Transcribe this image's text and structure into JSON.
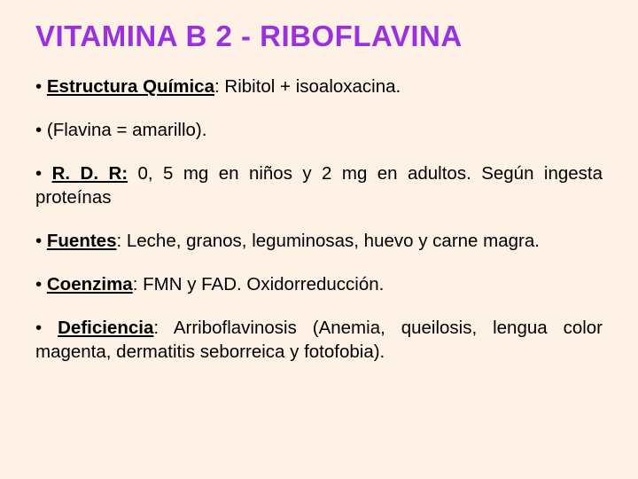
{
  "slide": {
    "background_color": "#fef1e6",
    "title_color": "#9b30dd",
    "text_color": "#000000",
    "title_fontsize": 33,
    "body_fontsize": 20.5,
    "title": "VITAMINA B 2 - RIBOFLAVINA",
    "bullets": [
      {
        "label": "Estructura Química",
        "label_bold": true,
        "text": ": Ribitol + isoaloxacina."
      },
      {
        "label": "",
        "label_bold": false,
        "text": "(Flavina = amarillo)."
      },
      {
        "label": "R. D. R:",
        "label_bold": true,
        "text": " 0, 5 mg en niños y 2 mg en adultos. Según ingesta proteínas"
      },
      {
        "label": "Fuentes",
        "label_bold": true,
        "text": ": Leche, granos, leguminosas, huevo y carne magra."
      },
      {
        "label": "Coenzima",
        "label_bold": true,
        "text": ": FMN y FAD. Oxidorreducción."
      },
      {
        "label": "Deficiencia",
        "label_bold": true,
        "text": ": Arriboflavinosis (Anemia, queilosis, lengua color magenta, dermatitis seborreica y fotofobia)."
      }
    ]
  }
}
